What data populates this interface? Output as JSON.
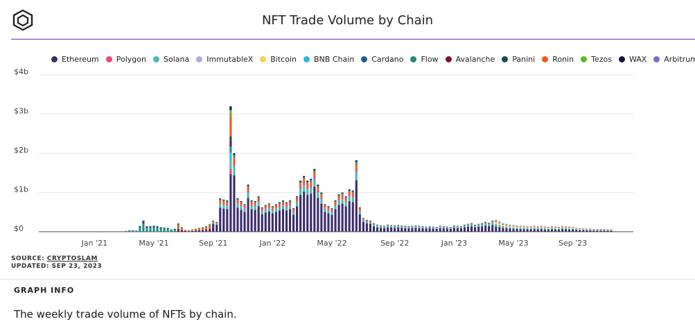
{
  "header": {
    "title": "NFT Trade Volume by Chain",
    "logo_icon": "cube-outline-icon"
  },
  "footer": {
    "source_label": "SOURCE:",
    "source_name": "CRYPTOSLAM",
    "updated": "UPDATED: SEP 23, 2023"
  },
  "info": {
    "heading": "GRAPH INFO",
    "text": "The weekly trade volume of NFTs by chain."
  },
  "chart_data": {
    "type": "bar",
    "stacked": true,
    "title": "NFT Trade Volume by Chain",
    "xlabel": "",
    "ylabel": "",
    "ylim": [
      0,
      4000000000
    ],
    "y_ticks": [
      "$0",
      "$1b",
      "$2b",
      "$3b",
      "$4b"
    ],
    "x_ticks": [
      "Jan '21",
      "May '21",
      "Sep '21",
      "Jan '22",
      "May '22",
      "Sep '22",
      "Jan '23",
      "May '23",
      "Sep '23"
    ],
    "x_tick_week_index": [
      10,
      27,
      44,
      61,
      78,
      96,
      113,
      130,
      147
    ],
    "grid": true,
    "legend_position": "top",
    "legend": [
      {
        "name": "Ethereum",
        "color": "#3b2c6b"
      },
      {
        "name": "Polygon",
        "color": "#e8467c"
      },
      {
        "name": "Solana",
        "color": "#4ab8b0"
      },
      {
        "name": "ImmutableX",
        "color": "#b8a9df"
      },
      {
        "name": "Bitcoin",
        "color": "#f2d54b"
      },
      {
        "name": "BNB Chain",
        "color": "#2ab8ea"
      },
      {
        "name": "Cardano",
        "color": "#1f5d99"
      },
      {
        "name": "Flow",
        "color": "#1f8c80"
      },
      {
        "name": "Avalanche",
        "color": "#7a1238"
      },
      {
        "name": "Panini",
        "color": "#1b4d4d"
      },
      {
        "name": "Ronin",
        "color": "#f05a1a"
      },
      {
        "name": "Tezos",
        "color": "#59b82e"
      },
      {
        "name": "WAX",
        "color": "#15123a"
      },
      {
        "name": "Arbitrum",
        "color": "#6f6fd2"
      }
    ],
    "weeks": 157,
    "totals": [
      0,
      0,
      0,
      0,
      0,
      0,
      0,
      0,
      0,
      0,
      0,
      0,
      0,
      0,
      0,
      0,
      0,
      0,
      0,
      0.02,
      0.04,
      0.04,
      0.03,
      0.15,
      0.3,
      0.15,
      0.15,
      0.16,
      0.15,
      0.12,
      0.11,
      0.1,
      0.06,
      0.08,
      0.22,
      0.12,
      0.05,
      0.04,
      0.06,
      0.08,
      0.1,
      0.12,
      0.15,
      0.2,
      0.28,
      0.25,
      0.85,
      0.82,
      0.8,
      3.2,
      2.0,
      0.85,
      0.78,
      0.7,
      1.2,
      0.8,
      0.78,
      0.9,
      0.62,
      0.68,
      0.72,
      0.65,
      0.7,
      0.75,
      0.8,
      0.75,
      0.8,
      0.6,
      0.9,
      1.3,
      1.42,
      1.3,
      1.35,
      1.6,
      1.2,
      1.0,
      0.7,
      0.65,
      0.6,
      0.8,
      0.95,
      1.0,
      0.9,
      1.08,
      1.05,
      1.82,
      0.62,
      0.35,
      0.3,
      0.28,
      0.22,
      0.18,
      0.16,
      0.15,
      0.18,
      0.17,
      0.16,
      0.17,
      0.16,
      0.15,
      0.14,
      0.15,
      0.16,
      0.15,
      0.14,
      0.13,
      0.14,
      0.13,
      0.12,
      0.15,
      0.14,
      0.13,
      0.12,
      0.16,
      0.15,
      0.14,
      0.18,
      0.2,
      0.22,
      0.18,
      0.2,
      0.22,
      0.25,
      0.23,
      0.28,
      0.3,
      0.26,
      0.22,
      0.2,
      0.18,
      0.17,
      0.16,
      0.15,
      0.15,
      0.14,
      0.14,
      0.15,
      0.14,
      0.15,
      0.13,
      0.12,
      0.14,
      0.13,
      0.12,
      0.15,
      0.14,
      0.13,
      0.12,
      0.1,
      0.09,
      0.09,
      0.08,
      0.08,
      0.07,
      0.07,
      0.07,
      0.07,
      0.06,
      0.06
    ],
    "totals_unit": "billion USD",
    "shares_rule": "share of each week's total by chain (Ethereum, Solana, Polygon, Ronin, Flow, Tezos, Bitcoin)"
  }
}
